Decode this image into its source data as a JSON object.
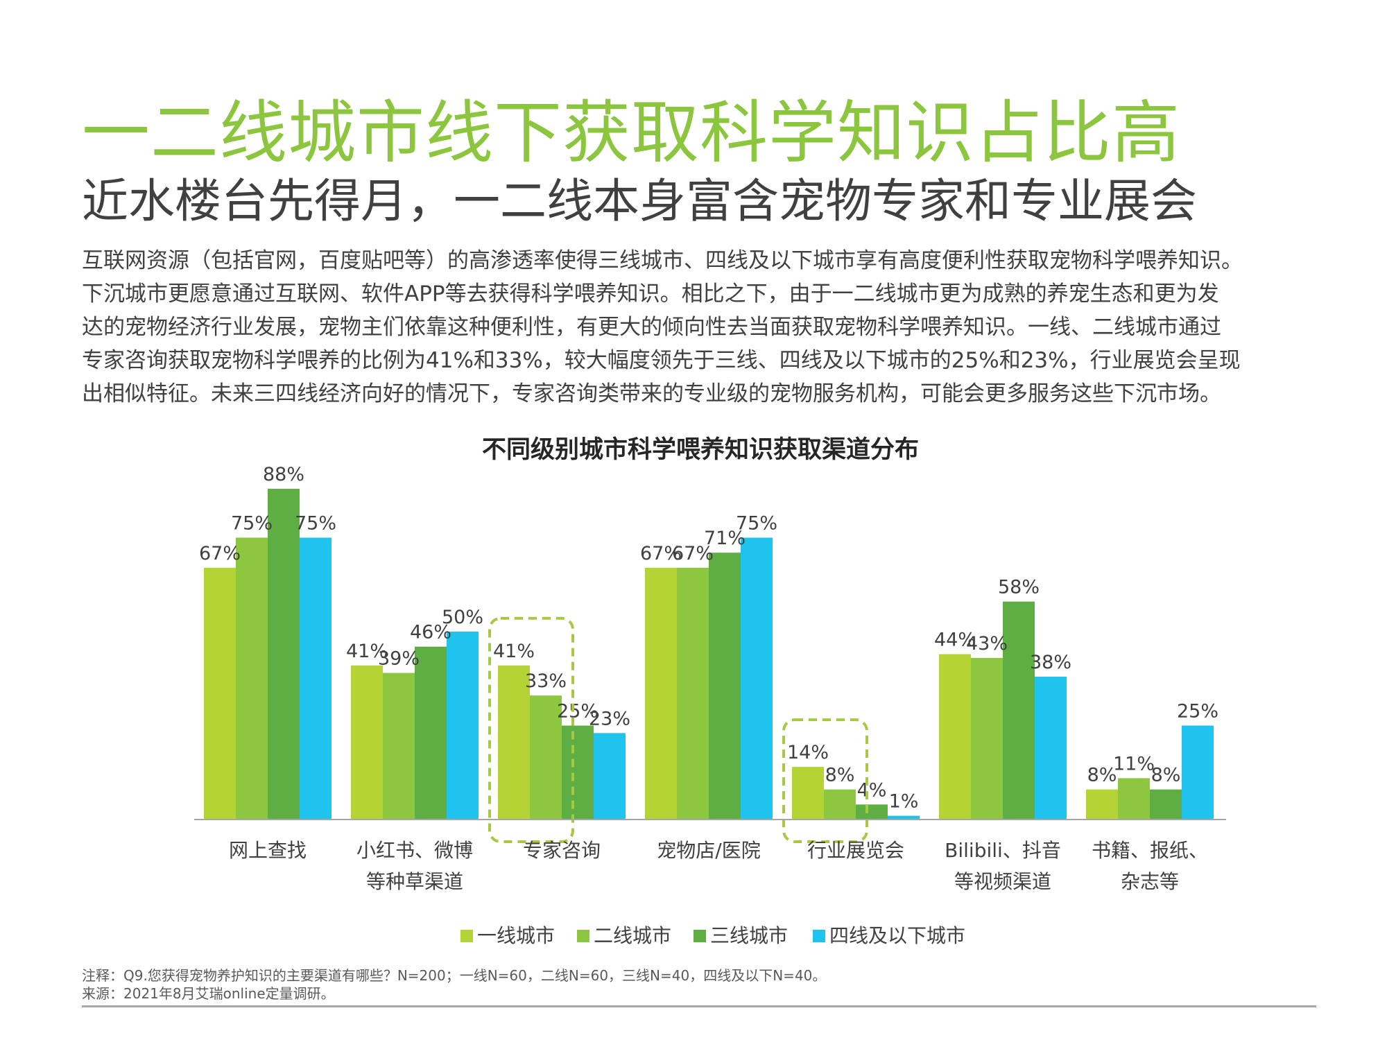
{
  "header": {
    "title": "一二线城市线下获取科学知识占比高",
    "subtitle": "近水楼台先得月，一二线本身富含宠物专家和专业展会"
  },
  "body_lines": [
    "互联网资源（包括官网，百度贴吧等）的高渗透率使得三线城市、四线及以下城市享有高度便利性获取宠物科学喂养知识。",
    "下沉城市更愿意通过互联网、软件APP等去获得科学喂养知识。相比之下，由于一二线城市更为成熟的养宠生态和更为发",
    "达的宠物经济行业发展，宠物主们依靠这种便利性，有更大的倾向性去当面获取宠物科学喂养知识。一线、二线城市通过",
    "专家咨询获取宠物科学喂养的比例为41%和33%，较大幅度领先于三线、四线及以下城市的25%和23%，行业展览会呈现",
    "出相似特征。未来三四线经济向好的情况下，专家咨询类带来的专业级的宠物服务机构，可能会更多服务这些下沉市场。"
  ],
  "chart_data": {
    "type": "bar",
    "title": "不同级别城市科学喂养知识获取渠道分布",
    "categories": [
      [
        "网上查找"
      ],
      [
        "小红书、微博",
        "等种草渠道"
      ],
      [
        "专家咨询"
      ],
      [
        "宠物店/医院"
      ],
      [
        "行业展览会"
      ],
      [
        "Bilibili、抖音",
        "等视频渠道"
      ],
      [
        "书籍、报纸、",
        "杂志等"
      ]
    ],
    "series": [
      {
        "name": "一线城市",
        "color": "#b5d334",
        "values": [
          67,
          41,
          41,
          67,
          14,
          44,
          8
        ]
      },
      {
        "name": "二线城市",
        "color": "#8dc63f",
        "values": [
          75,
          39,
          33,
          67,
          8,
          43,
          11
        ]
      },
      {
        "name": "三线城市",
        "color": "#5fae44",
        "values": [
          88,
          46,
          25,
          71,
          4,
          58,
          8
        ]
      },
      {
        "name": "四线及以下城市",
        "color": "#1fc3ee",
        "values": [
          75,
          50,
          23,
          75,
          1,
          38,
          25
        ]
      }
    ],
    "value_suffix": "%",
    "ylim": [
      0,
      88
    ],
    "highlighted_categories": [
      "专家咨询",
      "行业展览会"
    ],
    "legend_position": "bottom",
    "grid": false
  },
  "notes": {
    "note": "注释：Q9.您获得宠物养护知识的主要渠道有哪些？N=200；一线N=60，二线N=60，三线N=40，四线及以下N=40。",
    "source": "来源：2021年8月艾瑞online定量调研。"
  }
}
